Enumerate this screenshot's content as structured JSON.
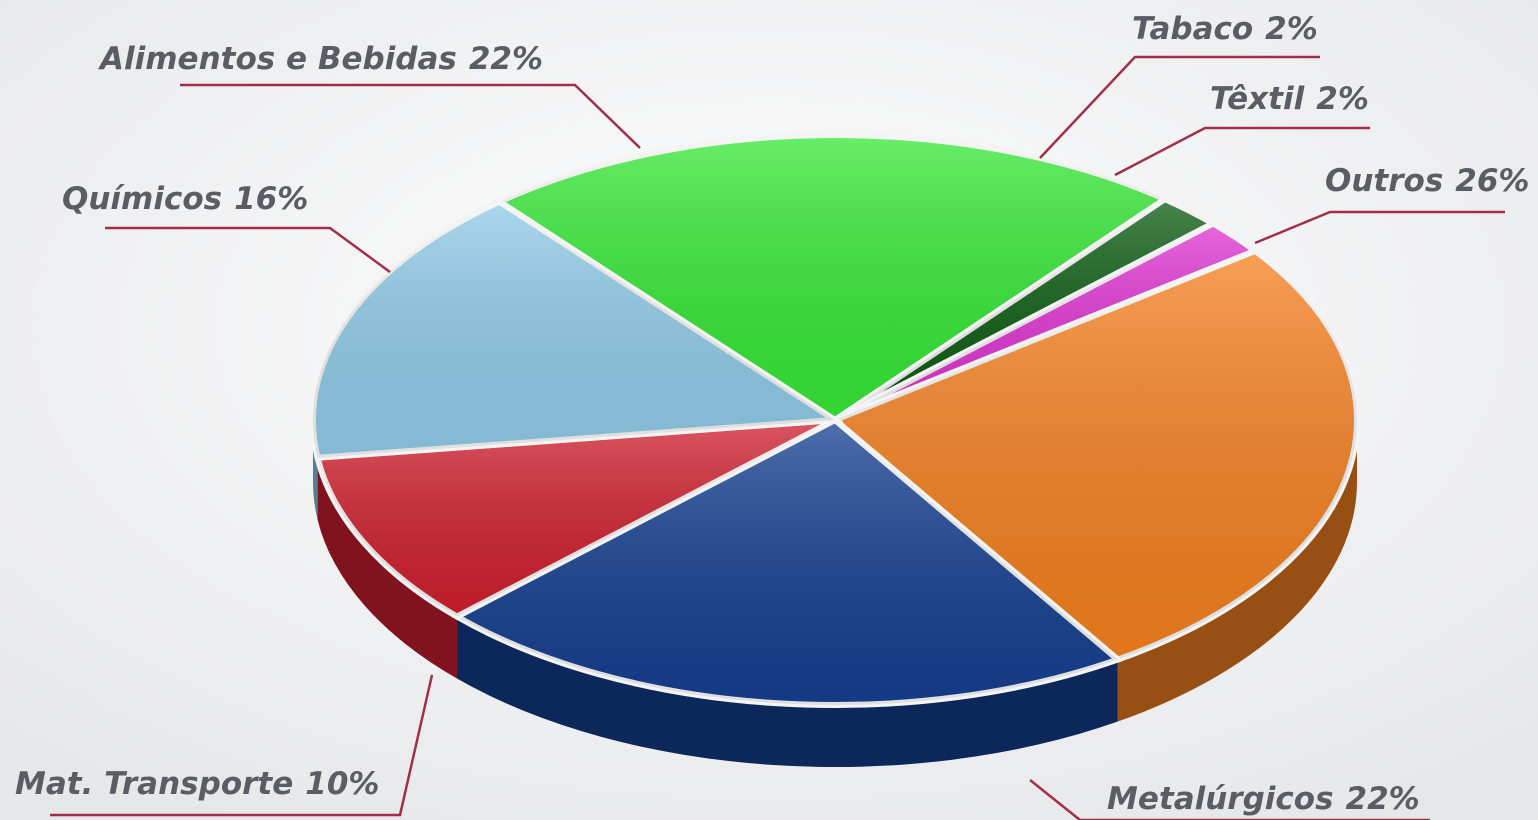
{
  "chart_data": {
    "type": "pie",
    "categories": [
      "Alimentos e Bebidas",
      "Tabaco",
      "Têxtil",
      "Outros",
      "Metalúrgicos",
      "Mat. Transporte",
      "Químicos"
    ],
    "values": [
      22,
      2,
      2,
      26,
      22,
      10,
      16
    ],
    "value_labels": [
      "22%",
      "2%",
      "2%",
      "26%",
      "22%",
      "10%",
      "16%"
    ],
    "colors": [
      "#36e836",
      "#0b5c12",
      "#e034d2",
      "#f5801f",
      "#143f90",
      "#cf1f2e",
      "#8fcbe8"
    ]
  }
}
